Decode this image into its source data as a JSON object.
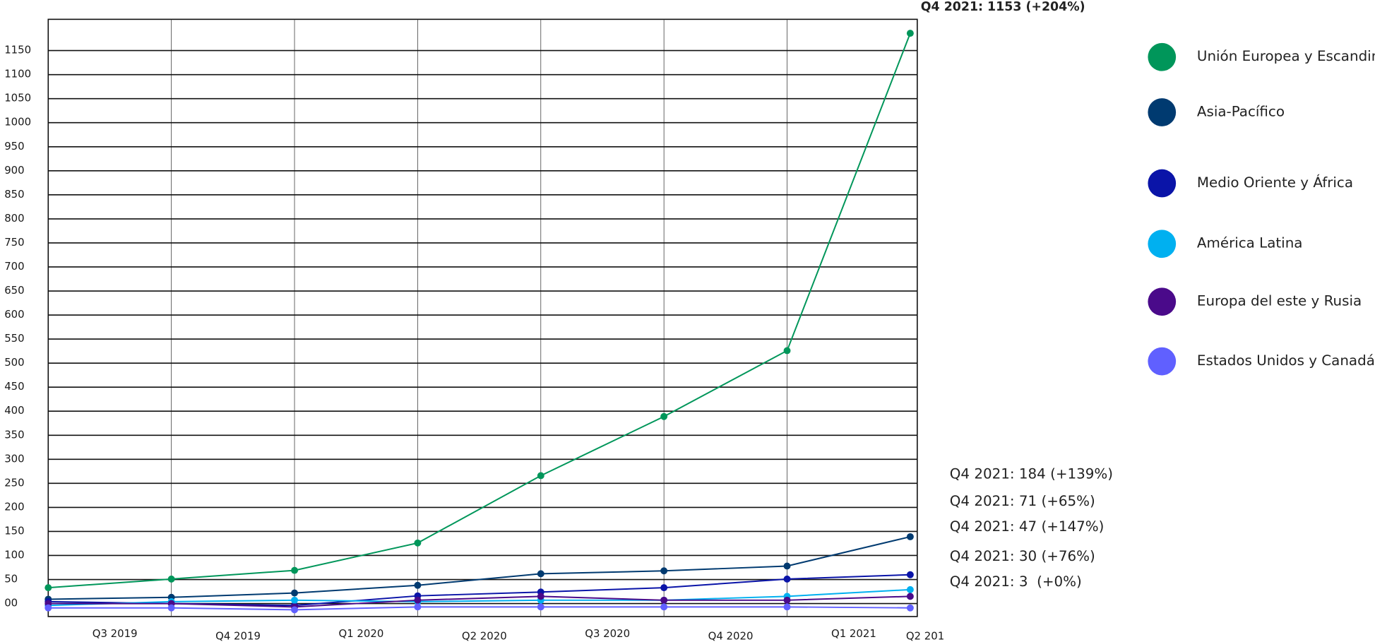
{
  "chart_data": {
    "type": "line",
    "categories": [
      "Q3 2019",
      "Q4 2019",
      "Q1 2020",
      "Q2 2020",
      "Q3 2020",
      "Q4 2020",
      "Q1 2021",
      "Q2 201"
    ],
    "series": [
      {
        "name": "Unión Europea y Escandinavia",
        "color": "#00965a",
        "values": [
          33,
          51,
          69,
          126,
          266,
          389,
          526,
          1186
        ]
      },
      {
        "name": "Asia-Pacífico",
        "color": "#003a70",
        "values": [
          9,
          13,
          22,
          38,
          62,
          68,
          78,
          139
        ]
      },
      {
        "name": "Medio Oriente y África",
        "color": "#0a14a8",
        "values": [
          4,
          0,
          -4,
          16,
          24,
          33,
          51,
          60
        ]
      },
      {
        "name": "América Latina",
        "color": "#00b0f0",
        "values": [
          -4,
          4,
          7,
          4,
          7,
          7,
          15,
          29
        ]
      },
      {
        "name": "Europa del este y Rusia",
        "color": "#4a0a8a",
        "values": [
          0,
          0,
          -7,
          7,
          15,
          7,
          7,
          15
        ]
      },
      {
        "name": "Estados Unidos y Canadá",
        "color": "#6060ff",
        "values": [
          -9,
          -9,
          -13,
          -7,
          -7,
          -7,
          -7,
          -9
        ]
      }
    ],
    "ylim": [
      -27,
      1215
    ],
    "yticks": [
      {
        "value": 0,
        "label": "00"
      },
      50,
      100,
      150,
      200,
      250,
      300,
      350,
      400,
      450,
      500,
      550,
      600,
      650,
      700,
      750,
      800,
      850,
      900,
      950,
      1000,
      1050,
      1100,
      1150
    ],
    "grid": true,
    "annotations": [
      "Q4 2021: 1153 (+204%)",
      "Q4 2021: 184 (+139%)",
      "Q4 2021: 71 (+65%)",
      "Q4 2021: 47 (+147%)",
      "Q4 2021: 30 (+76%)",
      "Q4 2021: 3  (+0%)"
    ]
  }
}
